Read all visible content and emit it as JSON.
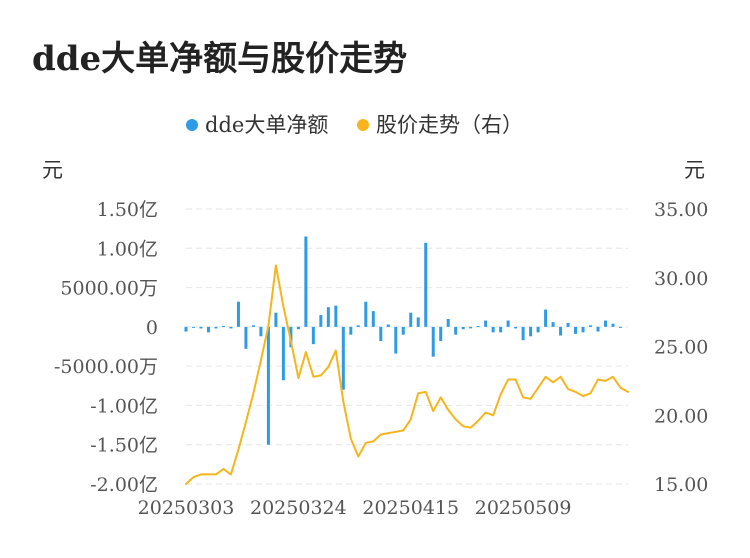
{
  "chart_data": {
    "type": "bar+line",
    "title": "dde大单净额与股价走势",
    "legend": [
      {
        "name": "dde大单净额",
        "color": "#2f9be5"
      },
      {
        "name": "股价走势（右）",
        "color": "#f6b51c"
      }
    ],
    "legend_position": "top-center",
    "left_axis": {
      "unit": "元",
      "ylim": [
        -20000,
        15000
      ],
      "ticks": [
        -20000,
        -15000,
        -10000,
        -5000,
        0,
        5000,
        10000,
        15000
      ],
      "tick_labels": [
        "-2.00亿",
        "-1.50亿",
        "-1.00亿",
        "-5000.00万",
        "0",
        "5000.00万",
        "1.00亿",
        "1.50亿"
      ]
    },
    "right_axis": {
      "unit": "元",
      "ylim": [
        15,
        35
      ],
      "ticks": [
        15,
        20,
        25,
        30,
        35
      ],
      "tick_labels": [
        "15.00",
        "20.00",
        "25.00",
        "30.00",
        "35.00"
      ]
    },
    "x_tick_labels": [
      {
        "index": 0,
        "label": "20250303"
      },
      {
        "index": 15,
        "label": "20250324"
      },
      {
        "index": 30,
        "label": "20250415"
      },
      {
        "index": 45,
        "label": "20250509"
      }
    ],
    "grid": true,
    "x_count": 60,
    "series": [
      {
        "name": "dde大单净额",
        "type": "bar",
        "axis": "left",
        "unit": "万元",
        "values": [
          -600,
          -100,
          -200,
          -700,
          -200,
          100,
          -200,
          3200,
          -2800,
          200,
          -1200,
          -15000,
          1800,
          -6800,
          -2600,
          -300,
          11500,
          -2200,
          1500,
          2500,
          2700,
          -8000,
          -1000,
          200,
          3200,
          2000,
          -1800,
          300,
          -3400,
          -1000,
          1800,
          1200,
          10700,
          -3800,
          -1800,
          1000,
          -1000,
          -300,
          -200,
          100,
          800,
          -700,
          -700,
          800,
          -200,
          -1700,
          -1200,
          -700,
          2200,
          600,
          -1100,
          500,
          -900,
          -700,
          200,
          -600,
          800,
          400,
          -100,
          0
        ]
      },
      {
        "name": "股价走势（右）",
        "type": "line",
        "axis": "right",
        "values": [
          15.0,
          15.5,
          15.7,
          15.7,
          15.7,
          16.1,
          15.7,
          17.5,
          19.5,
          21.6,
          24.0,
          26.5,
          30.9,
          27.9,
          25.4,
          22.7,
          24.6,
          22.8,
          22.9,
          23.5,
          24.7,
          21.0,
          18.3,
          17.0,
          18.0,
          18.1,
          18.6,
          18.7,
          18.8,
          18.9,
          19.7,
          21.6,
          21.7,
          20.3,
          21.3,
          20.4,
          19.7,
          19.2,
          19.1,
          19.6,
          20.2,
          20.0,
          21.5,
          22.6,
          22.6,
          21.3,
          21.2,
          22.0,
          22.8,
          22.4,
          22.8,
          21.9,
          21.7,
          21.4,
          21.6,
          22.6,
          22.5,
          22.8,
          22.0,
          21.7
        ]
      }
    ]
  }
}
